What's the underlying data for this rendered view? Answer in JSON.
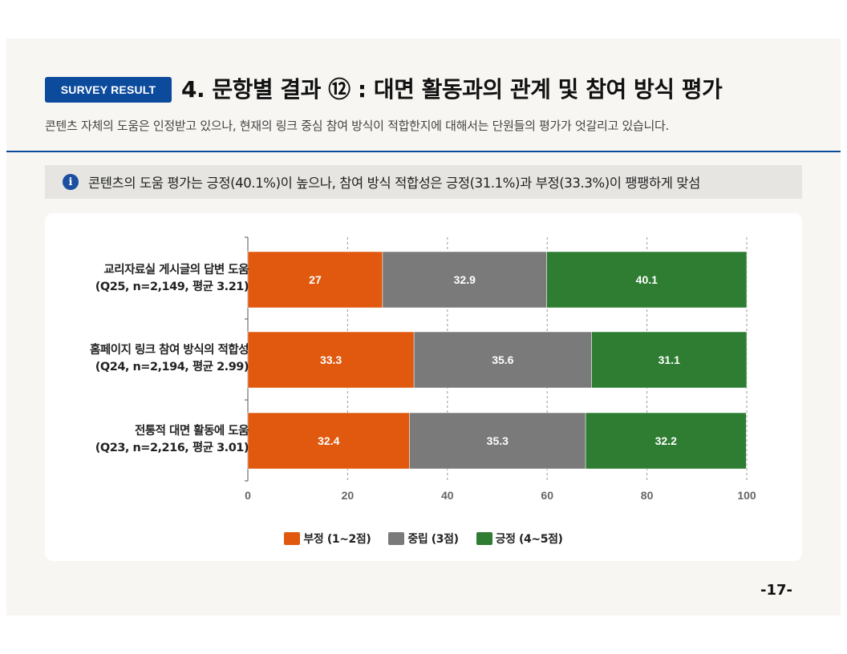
{
  "header": {
    "badge": "SURVEY RESULT",
    "title": "4. 문항별 결과 ⑫ : 대면 활동과의 관계 및 참여 방식 평가",
    "subtitle": "콘텐츠 자체의 도움은 인정받고 있으나, 현재의 링크 중심 참여 방식이 적합한지에 대해서는 단원들의 평가가 엇갈리고 있습니다."
  },
  "callout": {
    "text": "콘텐츠의 도움 평가는 긍정(40.1%)이 높으나, 참여 방식 적합성은 긍정(31.1%)과 부정(33.3%)이 팽팽하게 맞섬"
  },
  "page_number": "-17-",
  "colors": {
    "accent": "#0c4a9c",
    "negative": "#e0590f",
    "neutral": "#7a7a7a",
    "positive": "#2e7d32"
  },
  "chart_data": {
    "type": "bar",
    "orientation": "horizontal",
    "stacked": true,
    "categories": [
      {
        "line1": "교리자료실 게시글의 답변 도움",
        "line2": "(Q25, n=2,149, 평균 3.21)"
      },
      {
        "line1": "홈페이지 링크 참여 방식의 적합성",
        "line2": "(Q24, n=2,194, 평균 2.99)"
      },
      {
        "line1": "전통적 대면 활동에 도움",
        "line2": "(Q23, n=2,216, 평균 3.01)"
      }
    ],
    "series": [
      {
        "name": "부정 (1~2점)",
        "color": "#e0590f",
        "values": [
          27,
          33.3,
          32.4
        ],
        "labels": [
          "27",
          "33.3",
          "32.4"
        ]
      },
      {
        "name": "중립 (3점)",
        "color": "#7a7a7a",
        "values": [
          32.9,
          35.6,
          35.3
        ],
        "labels": [
          "32.9",
          "35.6",
          "35.3"
        ]
      },
      {
        "name": "긍정 (4~5점)",
        "color": "#2e7d32",
        "values": [
          40.1,
          31.1,
          32.2
        ],
        "labels": [
          "40.1",
          "31.1",
          "32.2"
        ]
      }
    ],
    "xlim": [
      0,
      100
    ],
    "xticks": [
      "0",
      "20",
      "40",
      "60",
      "80",
      "100"
    ],
    "grid": "vertical dashed",
    "legend_position": "bottom-center"
  }
}
